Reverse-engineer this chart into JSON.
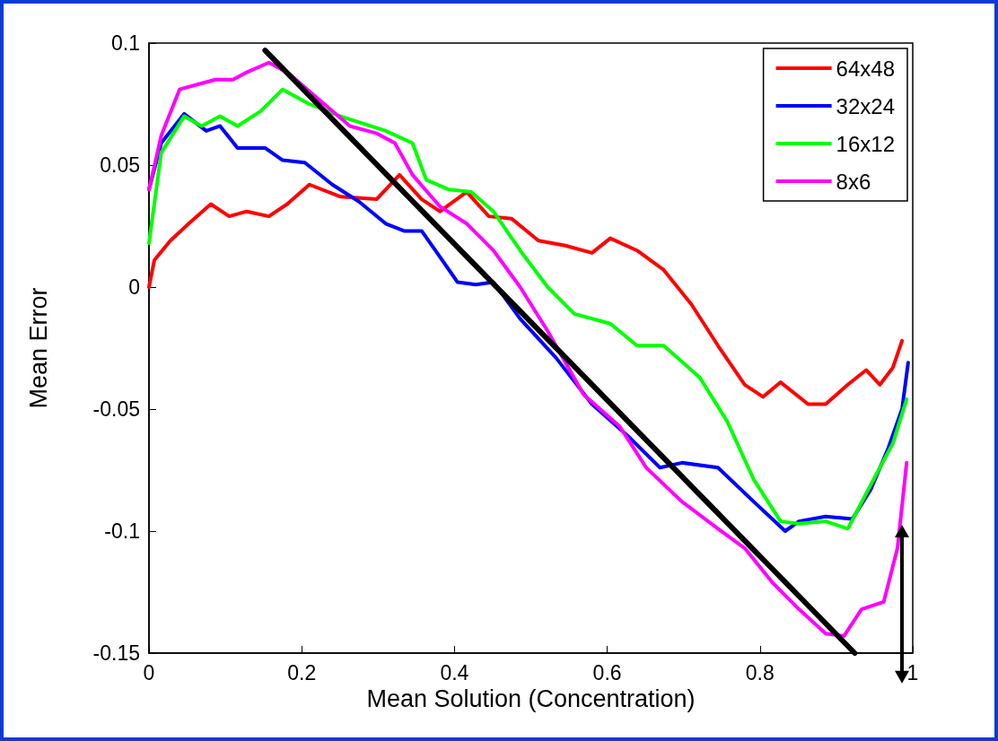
{
  "chart_data": {
    "type": "line",
    "xlabel": "Mean Solution (Concentration)",
    "ylabel": "Mean Error",
    "xlim": [
      0,
      1
    ],
    "xticks": [
      0,
      0.2,
      0.4,
      0.6,
      0.8,
      1
    ],
    "ylim": [
      -0.15,
      0.1
    ],
    "yticks": [
      -0.15,
      -0.1,
      -0.05,
      0,
      0.05,
      0.1
    ],
    "grid": false,
    "legend": "top right",
    "marker": "none",
    "line_style": "solid",
    "series": [
      {
        "name": "64x48",
        "color": "#ff0000",
        "x": [
          0,
          0.007,
          0.028,
          0.052,
          0.081,
          0.105,
          0.128,
          0.157,
          0.181,
          0.21,
          0.251,
          0.298,
          0.328,
          0.357,
          0.381,
          0.416,
          0.445,
          0.475,
          0.51,
          0.545,
          0.58,
          0.604,
          0.639,
          0.674,
          0.71,
          0.745,
          0.78,
          0.804,
          0.827,
          0.863,
          0.886,
          0.915,
          0.939,
          0.957,
          0.974,
          0.986
        ],
        "values": [
          0,
          0.011,
          0.019,
          0.026,
          0.034,
          0.029,
          0.031,
          0.029,
          0.034,
          0.042,
          0.037,
          0.036,
          0.046,
          0.036,
          0.031,
          0.039,
          0.029,
          0.028,
          0.019,
          0.017,
          0.014,
          0.02,
          0.015,
          0.007,
          -0.007,
          -0.024,
          -0.04,
          -0.045,
          -0.039,
          -0.048,
          -0.048,
          -0.04,
          -0.034,
          -0.04,
          -0.033,
          -0.022
        ]
      },
      {
        "name": "32x24",
        "color": "#0000ff",
        "x": [
          0,
          0.016,
          0.046,
          0.075,
          0.093,
          0.116,
          0.152,
          0.175,
          0.204,
          0.24,
          0.275,
          0.31,
          0.334,
          0.357,
          0.375,
          0.404,
          0.428,
          0.451,
          0.486,
          0.533,
          0.58,
          0.627,
          0.669,
          0.698,
          0.745,
          0.792,
          0.833,
          0.851,
          0.886,
          0.921,
          0.945,
          0.968,
          0.986,
          0.994
        ],
        "values": [
          0.04,
          0.059,
          0.071,
          0.064,
          0.066,
          0.057,
          0.057,
          0.052,
          0.051,
          0.042,
          0.035,
          0.026,
          0.023,
          0.023,
          0.015,
          0.002,
          0.001,
          0.002,
          -0.013,
          -0.029,
          -0.048,
          -0.061,
          -0.074,
          -0.072,
          -0.074,
          -0.088,
          -0.1,
          -0.096,
          -0.094,
          -0.095,
          -0.083,
          -0.066,
          -0.05,
          -0.031
        ]
      },
      {
        "name": "16x12",
        "color": "#00ff00",
        "x": [
          0,
          0.016,
          0.046,
          0.069,
          0.093,
          0.116,
          0.146,
          0.175,
          0.21,
          0.251,
          0.31,
          0.345,
          0.363,
          0.392,
          0.422,
          0.451,
          0.486,
          0.522,
          0.557,
          0.604,
          0.639,
          0.674,
          0.721,
          0.757,
          0.792,
          0.827,
          0.851,
          0.886,
          0.915,
          0.945,
          0.974,
          0.992
        ],
        "values": [
          0.018,
          0.055,
          0.07,
          0.066,
          0.07,
          0.066,
          0.072,
          0.081,
          0.075,
          0.07,
          0.064,
          0.059,
          0.044,
          0.04,
          0.039,
          0.031,
          0.015,
          0,
          -0.011,
          -0.015,
          -0.024,
          -0.024,
          -0.037,
          -0.055,
          -0.079,
          -0.096,
          -0.097,
          -0.096,
          -0.099,
          -0.081,
          -0.064,
          -0.046
        ]
      },
      {
        "name": "8x6",
        "color": "#ff00ff",
        "x": [
          0,
          0.016,
          0.04,
          0.063,
          0.087,
          0.11,
          0.128,
          0.157,
          0.181,
          0.222,
          0.263,
          0.298,
          0.322,
          0.345,
          0.381,
          0.416,
          0.451,
          0.486,
          0.522,
          0.569,
          0.616,
          0.651,
          0.698,
          0.745,
          0.78,
          0.816,
          0.851,
          0.886,
          0.91,
          0.933,
          0.962,
          0.98,
          0.992
        ],
        "values": [
          0.04,
          0.062,
          0.081,
          0.083,
          0.085,
          0.085,
          0.088,
          0.092,
          0.088,
          0.077,
          0.066,
          0.063,
          0.059,
          0.046,
          0.033,
          0.026,
          0.015,
          0,
          -0.018,
          -0.044,
          -0.057,
          -0.074,
          -0.088,
          -0.099,
          -0.107,
          -0.121,
          -0.132,
          -0.142,
          -0.143,
          -0.132,
          -0.129,
          -0.107,
          -0.072
        ]
      },
      {
        "color": "#000000",
        "x": [
          0.152,
          0.924
        ],
        "values": [
          0.097,
          -0.15
        ]
      }
    ]
  }
}
